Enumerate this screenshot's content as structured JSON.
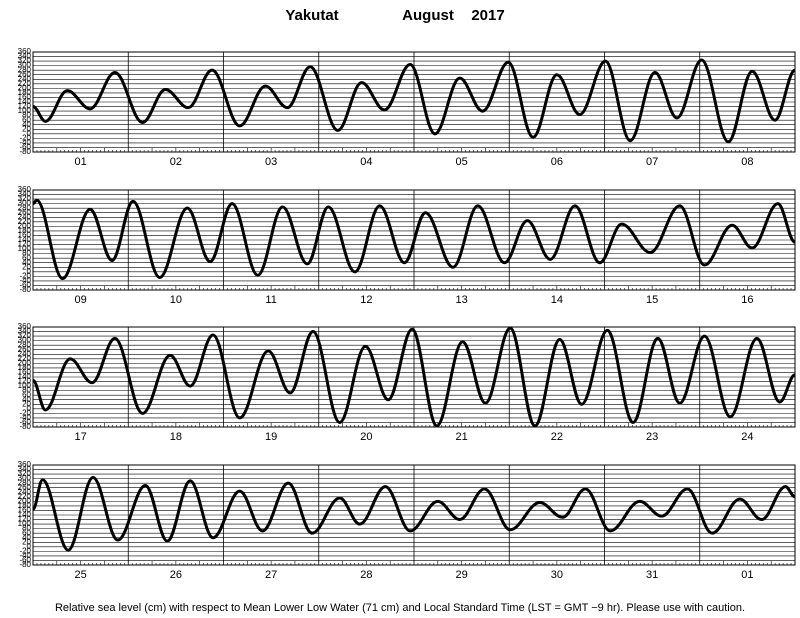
{
  "header": {
    "station": "Yakutat",
    "month": "August",
    "year": "2017"
  },
  "footer": "Relative sea level (cm) with respect to Mean Lower Low Water (71 cm) and Local Standard Time (LST = GMT −9 hr). Please use with caution.",
  "chart_data": [
    {
      "type": "line",
      "categories": [
        "01",
        "02",
        "03",
        "04",
        "05",
        "06",
        "07",
        "08"
      ],
      "x": [
        0,
        0.13,
        0.36,
        0.6,
        0.86,
        1.15,
        1.39,
        1.63,
        1.88,
        2.17,
        2.44,
        2.67,
        2.91,
        3.2,
        3.45,
        3.69,
        3.96,
        4.22,
        4.48,
        4.72,
        4.99,
        5.25,
        5.5,
        5.74,
        6.01,
        6.27,
        6.53,
        6.76,
        7.02,
        7.3,
        7.55,
        7.79,
        8
      ],
      "series": [
        {
          "color": "#000000",
          "values": [
            120,
            55,
            190,
            110,
            270,
            50,
            195,
            115,
            280,
            35,
            210,
            115,
            295,
            15,
            225,
            105,
            305,
            0,
            245,
            100,
            315,
            -15,
            260,
            85,
            320,
            -30,
            270,
            70,
            325,
            -35,
            275,
            60,
            280
          ]
        }
      ],
      "xlim": [
        0,
        8
      ],
      "ylim": [
        -80,
        360
      ],
      "yticks": [
        -80,
        -60,
        -40,
        -20,
        0,
        20,
        40,
        60,
        80,
        100,
        120,
        140,
        160,
        180,
        200,
        220,
        240,
        260,
        280,
        300,
        320,
        340,
        360
      ],
      "grid": true
    },
    {
      "type": "line",
      "categories": [
        "09",
        "10",
        "11",
        "12",
        "13",
        "14",
        "15",
        "16"
      ],
      "x": [
        0,
        0.04,
        0.31,
        0.6,
        0.83,
        1.05,
        1.33,
        1.62,
        1.86,
        2.09,
        2.36,
        2.62,
        2.88,
        3.1,
        3.38,
        3.64,
        3.9,
        4.12,
        4.41,
        4.67,
        4.95,
        5.19,
        5.43,
        5.69,
        5.95,
        6.18,
        6.48,
        6.79,
        7.05,
        7.34,
        7.55,
        7.82,
        8
      ],
      "series": [
        {
          "color": "#000000",
          "values": [
            300,
            315,
            -30,
            275,
            50,
            310,
            -25,
            280,
            45,
            300,
            -15,
            285,
            35,
            285,
            0,
            290,
            40,
            260,
            20,
            290,
            40,
            225,
            55,
            290,
            40,
            210,
            85,
            290,
            30,
            205,
            105,
            300,
            130
          ]
        }
      ],
      "xlim": [
        0,
        8
      ],
      "ylim": [
        -80,
        360
      ],
      "yticks": [
        -80,
        -60,
        -40,
        -20,
        0,
        20,
        40,
        60,
        80,
        100,
        120,
        140,
        160,
        180,
        200,
        220,
        240,
        260,
        280,
        300,
        320,
        340,
        360
      ],
      "grid": true
    },
    {
      "type": "line",
      "categories": [
        "17",
        "18",
        "19",
        "20",
        "21",
        "22",
        "23",
        "24"
      ],
      "x": [
        0,
        0.13,
        0.39,
        0.62,
        0.86,
        1.15,
        1.44,
        1.65,
        1.89,
        2.17,
        2.47,
        2.7,
        2.94,
        3.22,
        3.49,
        3.73,
        3.98,
        4.24,
        4.51,
        4.75,
        5.01,
        5.27,
        5.53,
        5.76,
        6.03,
        6.3,
        6.56,
        6.79,
        7.05,
        7.32,
        7.6,
        7.84,
        8
      ],
      "series": [
        {
          "color": "#000000",
          "values": [
            125,
            -5,
            220,
            115,
            310,
            -20,
            235,
            100,
            325,
            -40,
            255,
            70,
            340,
            -60,
            275,
            40,
            350,
            -75,
            295,
            25,
            355,
            -75,
            305,
            20,
            345,
            -60,
            310,
            25,
            320,
            -35,
            310,
            30,
            150
          ]
        }
      ],
      "xlim": [
        0,
        8
      ],
      "ylim": [
        -80,
        360
      ],
      "yticks": [
        -80,
        -60,
        -40,
        -20,
        0,
        20,
        40,
        60,
        80,
        100,
        120,
        140,
        160,
        180,
        200,
        220,
        240,
        260,
        280,
        300,
        320,
        340,
        360
      ],
      "grid": true
    },
    {
      "type": "line",
      "categories": [
        "25",
        "26",
        "27",
        "28",
        "29",
        "30",
        "31",
        "01"
      ],
      "x": [
        0,
        0.1,
        0.37,
        0.63,
        0.89,
        1.18,
        1.41,
        1.65,
        1.89,
        2.17,
        2.41,
        2.68,
        2.93,
        3.22,
        3.43,
        3.7,
        3.96,
        4.25,
        4.48,
        4.74,
        5.01,
        5.32,
        5.56,
        5.8,
        6.06,
        6.37,
        6.6,
        6.87,
        7.13,
        7.42,
        7.65,
        7.9,
        8
      ],
      "series": [
        {
          "color": "#000000",
          "values": [
            165,
            295,
            -15,
            305,
            30,
            270,
            25,
            290,
            40,
            245,
            70,
            280,
            60,
            215,
            100,
            265,
            70,
            200,
            120,
            255,
            75,
            195,
            130,
            255,
            70,
            200,
            135,
            255,
            60,
            210,
            120,
            265,
            220
          ]
        }
      ],
      "xlim": [
        0,
        8
      ],
      "ylim": [
        -80,
        360
      ],
      "yticks": [
        -80,
        -60,
        -40,
        -20,
        0,
        20,
        40,
        60,
        80,
        100,
        120,
        140,
        160,
        180,
        200,
        220,
        240,
        260,
        280,
        300,
        320,
        340,
        360
      ],
      "grid": true
    }
  ]
}
